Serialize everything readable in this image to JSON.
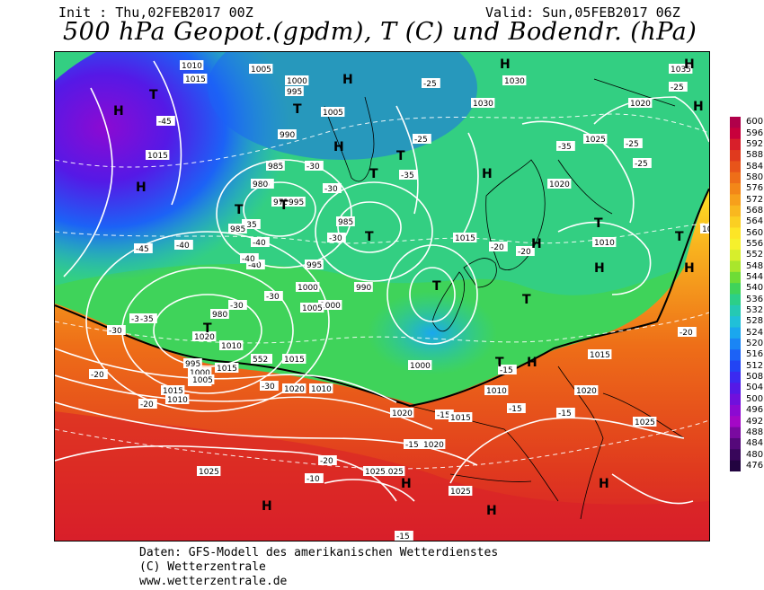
{
  "header": {
    "init": "Init : Thu,02FEB2017 00Z",
    "valid": "Valid: Sun,05FEB2017 06Z",
    "title": "500 hPa Geopot.(gpdm), T (C) und Bodendr. (hPa)"
  },
  "colorbar": {
    "levels": [
      "600",
      "596",
      "592",
      "588",
      "584",
      "580",
      "576",
      "572",
      "568",
      "564",
      "560",
      "556",
      "552",
      "548",
      "544",
      "540",
      "536",
      "532",
      "528",
      "524",
      "520",
      "516",
      "512",
      "508",
      "504",
      "500",
      "496",
      "492",
      "488",
      "484",
      "480",
      "476"
    ],
    "colors": [
      "#b0004a",
      "#c8003c",
      "#d81f2a",
      "#e03a1e",
      "#e8541a",
      "#ee6e18",
      "#f38718",
      "#f7a01b",
      "#f9b81f",
      "#fbcf22",
      "#fde526",
      "#f6f02c",
      "#d7ee2c",
      "#a9e62c",
      "#6edc36",
      "#3fd35a",
      "#2ccf88",
      "#25c9b3",
      "#20c0d8",
      "#1aa7ee",
      "#1a85f5",
      "#1c62f6",
      "#2244f4",
      "#3b2af0",
      "#5519e6",
      "#7010dc",
      "#8c0ad2",
      "#a408c6",
      "#7a0aa0",
      "#55087a",
      "#38065a",
      "#220440"
    ]
  },
  "map": {
    "geopotential_contour_label": "552",
    "temperature_labels": [
      "-45",
      "-45",
      "-40",
      "-40",
      "-40",
      "-40",
      "-35",
      "-35",
      "-35",
      "-35",
      "-35",
      "-35",
      "-30",
      "-30",
      "-30",
      "-30",
      "-30",
      "-30",
      "-30",
      "-25",
      "-25",
      "-25",
      "-25",
      "-25",
      "-25",
      "-20",
      "-20",
      "-20",
      "-20",
      "-20",
      "-20",
      "-15",
      "-15",
      "-15",
      "-15",
      "-15",
      "-10",
      "-15"
    ],
    "pressure_labels": [
      "1010",
      "1015",
      "1005",
      "1000",
      "995",
      "1005",
      "1015",
      "990",
      "985",
      "980",
      "975",
      "985",
      "980",
      "995",
      "1000",
      "985",
      "990",
      "995",
      "1000",
      "1005",
      "1010",
      "1015",
      "1020",
      "1000",
      "1010",
      "1015",
      "1020",
      "1025",
      "1030",
      "1035",
      "1020",
      "1025",
      "1020",
      "1015",
      "1020",
      "1025",
      "1025",
      "1015",
      "1010",
      "1005",
      "995",
      "1000",
      "1005",
      "1010",
      "1015",
      "1020",
      "1025",
      "1020",
      "1025",
      "1030",
      "1010",
      "1015",
      "1020"
    ],
    "highs": [
      "H",
      "H",
      "H",
      "H",
      "H",
      "H",
      "H",
      "H",
      "H",
      "H",
      "H",
      "H",
      "H",
      "H",
      "H",
      "H"
    ],
    "lows": [
      "T",
      "T",
      "T",
      "T",
      "T",
      "T",
      "T",
      "T",
      "T",
      "T",
      "T",
      "T",
      "T",
      "T"
    ]
  },
  "footer": {
    "line1": "Daten: GFS-Modell des amerikanischen Wetterdienstes",
    "line2": "(C) Wetterzentrale",
    "line3": "www.wetterzentrale.de"
  }
}
